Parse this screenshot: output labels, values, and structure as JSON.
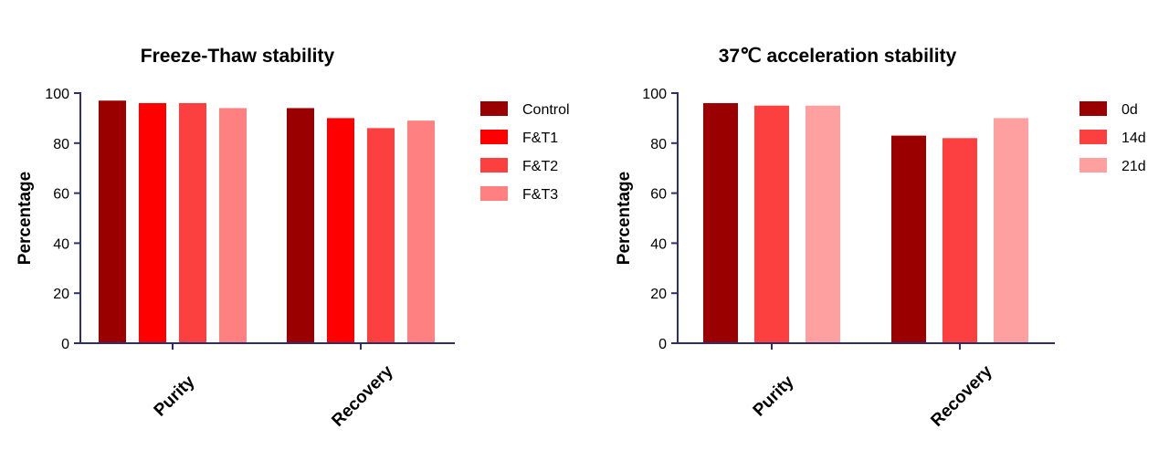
{
  "chart_data": [
    {
      "type": "bar",
      "title": "Freeze-Thaw stability",
      "ylabel": "Percentage",
      "xlabel": "",
      "ylim": [
        0,
        100
      ],
      "yticks": [
        0,
        20,
        40,
        60,
        80,
        100
      ],
      "categories": [
        "Purity",
        "Recovery"
      ],
      "legend_position": "right",
      "series": [
        {
          "name": "Control",
          "color": "#9b0000",
          "values": [
            97,
            94
          ]
        },
        {
          "name": "F&T1",
          "color": "#ff0000",
          "values": [
            96,
            90
          ]
        },
        {
          "name": "F&T2",
          "color": "#fc4040",
          "values": [
            96,
            86
          ]
        },
        {
          "name": "F&T3",
          "color": "#ff8080",
          "values": [
            94,
            89
          ]
        }
      ]
    },
    {
      "type": "bar",
      "title": "37℃ acceleration stability",
      "ylabel": "Percentage",
      "xlabel": "",
      "ylim": [
        0,
        100
      ],
      "yticks": [
        0,
        20,
        40,
        60,
        80,
        100
      ],
      "categories": [
        "Purity",
        "Recovery"
      ],
      "legend_position": "right",
      "series": [
        {
          "name": "0d",
          "color": "#9b0000",
          "values": [
            96,
            83
          ]
        },
        {
          "name": "14d",
          "color": "#fc4040",
          "values": [
            95,
            82
          ]
        },
        {
          "name": "21d",
          "color": "#ffa0a0",
          "values": [
            95,
            90
          ]
        }
      ]
    }
  ]
}
